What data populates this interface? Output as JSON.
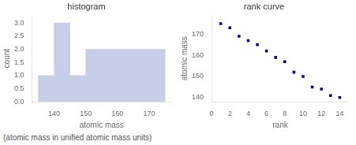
{
  "chart_data": [
    {
      "type": "histogram",
      "title": "histogram",
      "xlabel": "atomic mass",
      "ylabel": "count",
      "caption": "(atomic mass in unified atomic mass units)",
      "bins": [
        135,
        140,
        145,
        150,
        155,
        160,
        165,
        170,
        175
      ],
      "values": [
        1,
        3,
        1,
        2,
        2,
        2,
        2,
        2
      ],
      "color": "#c8cde8",
      "xlim": [
        133,
        177
      ],
      "xticks": [
        140,
        150,
        160,
        170
      ],
      "ylim": [
        0,
        3.3
      ],
      "yticks": [
        {
          "value": 0,
          "label": "0.0"
        },
        0.5,
        {
          "value": 1,
          "label": "1.0"
        },
        1.5,
        {
          "value": 2,
          "label": "2.0"
        },
        2.5,
        {
          "value": 3,
          "label": "3.0"
        }
      ],
      "grid": false
    },
    {
      "type": "scatter",
      "title": "rank curve",
      "xlabel": "rank",
      "ylabel": "atomic mass",
      "x": [
        1,
        2,
        3,
        4,
        5,
        6,
        7,
        8,
        9,
        10,
        11,
        12,
        13,
        14
      ],
      "values": [
        175,
        173,
        169,
        167,
        165,
        162,
        159,
        157,
        152,
        150,
        145,
        144,
        141,
        140
      ],
      "color": "#00008b",
      "marker": "square",
      "line_style": "none",
      "xlim": [
        0,
        15
      ],
      "xticks": [
        0,
        2,
        4,
        6,
        8,
        10,
        12,
        14
      ],
      "ylim": [
        138,
        179
      ],
      "yticks": [
        140,
        150,
        160,
        170
      ],
      "grid": false
    }
  ]
}
